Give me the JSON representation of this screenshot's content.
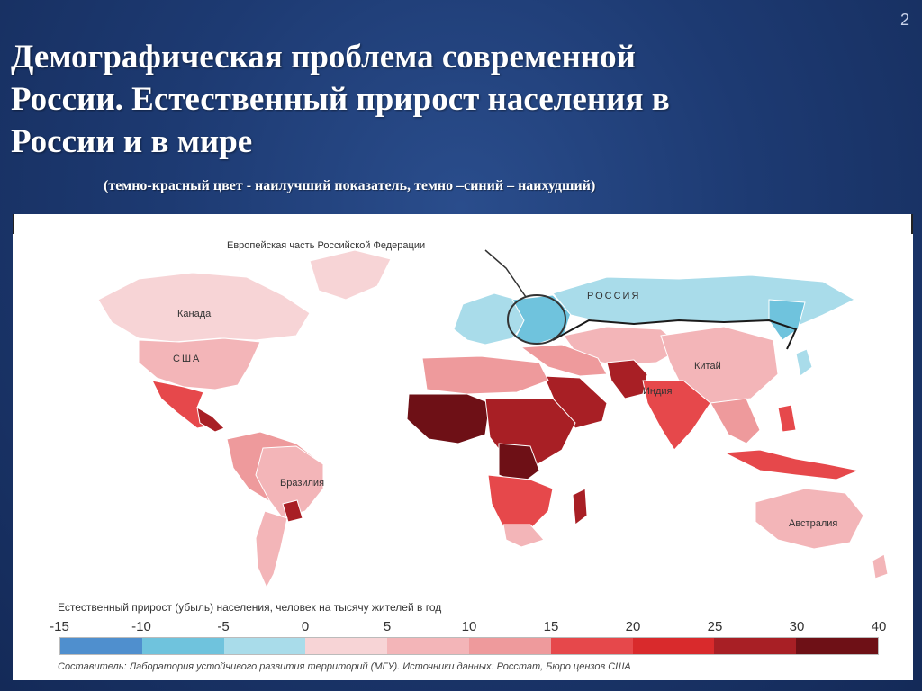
{
  "slide": {
    "number": "2",
    "title": "Демографическая проблема современной\nРоссии. Естественный прирост населения в\nРоссии и в мире",
    "subtitle": "(темно-красный цвет - наилучший показатель,  темно –синий – наихудший)"
  },
  "map": {
    "callout": "Европейская часть Российской Федерации",
    "labels": {
      "russia": "РОССИЯ",
      "canada": "Канада",
      "usa": "США",
      "china": "Китай",
      "india": "Индия",
      "brazil": "Бразилия",
      "australia": "Австралия"
    },
    "colors": {
      "ocean": "#ffffff",
      "border_highlight": "#1a1a1a"
    }
  },
  "legend": {
    "title": "Естественный прирост (убыль) населения, человек на тысячу жителей в год",
    "ticks": [
      "-15",
      "-10",
      "-5",
      "0",
      "5",
      "10",
      "15",
      "20",
      "25",
      "30",
      "40"
    ],
    "colors": [
      "#4f8fce",
      "#6fc3dd",
      "#a9dcea",
      "#f7d4d6",
      "#f3b5b8",
      "#ee9a9c",
      "#e6484b",
      "#d92a2c",
      "#a81f25",
      "#6e1016"
    ],
    "source": "Составитель: Лаборатория устойчивого развития территорий (МГУ).   Источники данных: Росстат, Бюро цензов США"
  }
}
